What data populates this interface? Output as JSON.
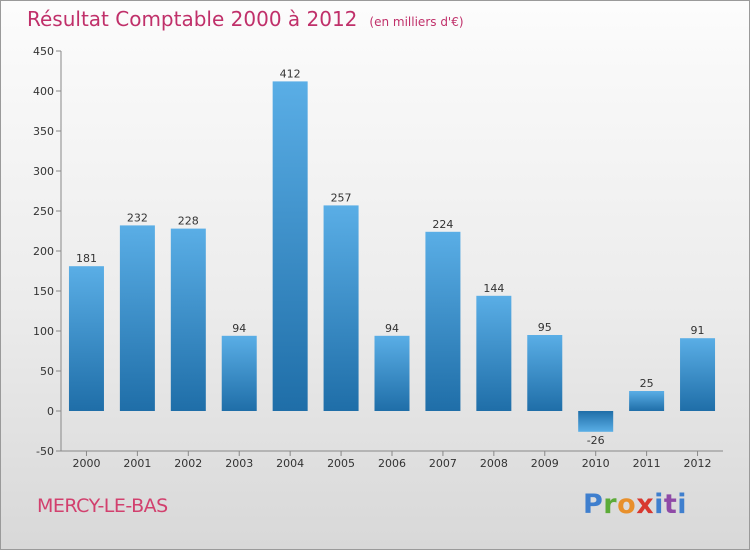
{
  "chart_data": {
    "type": "bar",
    "title": "Résultat Comptable 2000 à 2012",
    "subtitle": "(en milliers d'€)",
    "categories": [
      "2000",
      "2001",
      "2002",
      "2003",
      "2004",
      "2005",
      "2006",
      "2007",
      "2008",
      "2009",
      "2010",
      "2011",
      "2012"
    ],
    "values": [
      181,
      232,
      228,
      94,
      412,
      257,
      94,
      224,
      144,
      95,
      -26,
      25,
      91
    ],
    "ylim": [
      -50,
      450
    ],
    "yticks": [
      -50,
      0,
      50,
      100,
      150,
      200,
      250,
      300,
      350,
      400,
      450
    ],
    "xlabel": "",
    "ylabel": "",
    "grid": false
  },
  "footer": {
    "commune": "MERCY-LE-BAS",
    "logo": "Proxiti",
    "logo_letters": [
      "P",
      "r",
      "o",
      "x",
      "i",
      "t",
      "i"
    ]
  },
  "colors": {
    "bar_light": "#5aaee6",
    "bar_dark": "#1f6ea8",
    "title": "#c0306a",
    "commune": "#d2406e"
  }
}
